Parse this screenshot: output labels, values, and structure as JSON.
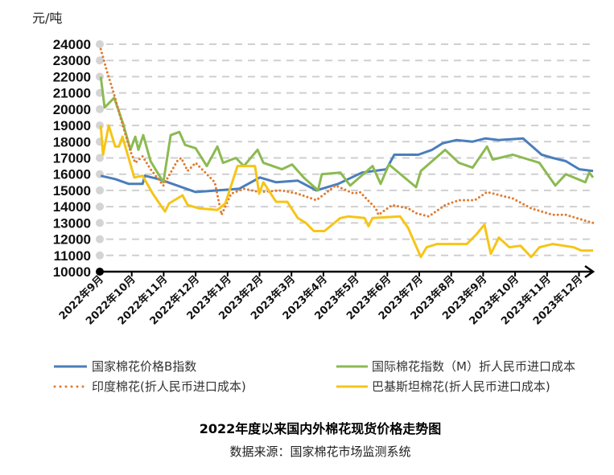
{
  "chart_data": {
    "type": "line",
    "title": "2022年度以来国内外棉花现货价格走势图",
    "source": "数据来源：国家棉花市场监测系统",
    "ylabel": "元/吨",
    "xlabel": "",
    "ylim": [
      10000,
      24000
    ],
    "yticks": [
      "10000",
      "11000",
      "12000",
      "13000",
      "14000",
      "15000",
      "16000",
      "17000",
      "18000",
      "19000",
      "20000",
      "21000",
      "22000",
      "23000",
      "24000"
    ],
    "x_unit": "months since 2022-09-01",
    "xticks": [
      "2022年9月",
      "2022年10月",
      "2022年11月",
      "2022年12月",
      "2023年1月",
      "2023年2月",
      "2023年3月",
      "2023年4月",
      "2023年5月",
      "2023年6月",
      "2023年7月",
      "2023年8月",
      "2023年9月",
      "2023年10月",
      "2023年11月",
      "2023年12月"
    ],
    "grid": true,
    "legend_position": "bottom",
    "series": [
      {
        "name": "国家棉花价格B指数",
        "color": "#4a7ebb",
        "style": "solid",
        "points": [
          [
            0.03,
            15900
          ],
          [
            0.48,
            15700
          ],
          [
            0.91,
            15400
          ],
          [
            1.34,
            15400
          ],
          [
            1.41,
            15900
          ],
          [
            1.84,
            15700
          ],
          [
            1.99,
            15600
          ],
          [
            3.0,
            14900
          ],
          [
            3.68,
            15000
          ],
          [
            4.36,
            15100
          ],
          [
            5.01,
            15800
          ],
          [
            5.52,
            15500
          ],
          [
            6.2,
            15600
          ],
          [
            6.78,
            15000
          ],
          [
            7.46,
            15400
          ],
          [
            8.21,
            16100
          ],
          [
            8.97,
            16300
          ],
          [
            9.22,
            17200
          ],
          [
            9.97,
            17200
          ],
          [
            10.4,
            17500
          ],
          [
            10.73,
            17900
          ],
          [
            11.16,
            18100
          ],
          [
            11.66,
            18000
          ],
          [
            12.07,
            18200
          ],
          [
            12.49,
            18100
          ],
          [
            13.25,
            18200
          ],
          [
            13.83,
            17200
          ],
          [
            14.18,
            17000
          ],
          [
            14.59,
            16800
          ],
          [
            15.01,
            16300
          ],
          [
            15.44,
            16200
          ]
        ]
      },
      {
        "name": "国际棉花指数（M）折人民币进口成本",
        "color": "#8cba52",
        "style": "solid",
        "points": [
          [
            0.03,
            22000
          ],
          [
            0.15,
            20100
          ],
          [
            0.45,
            20700
          ],
          [
            0.73,
            19100
          ],
          [
            0.96,
            17500
          ],
          [
            1.11,
            18300
          ],
          [
            1.21,
            17500
          ],
          [
            1.36,
            18400
          ],
          [
            1.59,
            16800
          ],
          [
            1.99,
            15500
          ],
          [
            2.22,
            18400
          ],
          [
            2.49,
            18600
          ],
          [
            2.67,
            17800
          ],
          [
            3.0,
            17600
          ],
          [
            3.35,
            16500
          ],
          [
            3.68,
            17700
          ],
          [
            3.86,
            16700
          ],
          [
            4.26,
            17000
          ],
          [
            4.51,
            16500
          ],
          [
            4.94,
            17500
          ],
          [
            5.12,
            16700
          ],
          [
            5.7,
            16300
          ],
          [
            6.02,
            16600
          ],
          [
            6.38,
            15800
          ],
          [
            6.83,
            15000
          ],
          [
            6.95,
            16000
          ],
          [
            7.53,
            16100
          ],
          [
            7.84,
            15300
          ],
          [
            8.54,
            16500
          ],
          [
            8.79,
            15400
          ],
          [
            9.05,
            16600
          ],
          [
            9.9,
            15200
          ],
          [
            10.05,
            16200
          ],
          [
            10.81,
            17500
          ],
          [
            11.24,
            16700
          ],
          [
            11.67,
            16400
          ],
          [
            12.12,
            17700
          ],
          [
            12.3,
            16900
          ],
          [
            12.93,
            17200
          ],
          [
            13.76,
            16700
          ],
          [
            14.26,
            15300
          ],
          [
            14.59,
            16000
          ],
          [
            15.2,
            15500
          ],
          [
            15.32,
            16100
          ],
          [
            15.44,
            15800
          ]
        ]
      },
      {
        "name": "印度棉花(折人民币进口成本)",
        "color": "#e07b30",
        "style": "dotted",
        "points": [
          [
            0.03,
            23700
          ],
          [
            0.23,
            22300
          ],
          [
            0.45,
            20900
          ],
          [
            0.66,
            19400
          ],
          [
            0.96,
            17400
          ],
          [
            1.11,
            16700
          ],
          [
            1.34,
            17100
          ],
          [
            1.59,
            16300
          ],
          [
            1.99,
            15300
          ],
          [
            2.42,
            16800
          ],
          [
            2.55,
            17000
          ],
          [
            2.75,
            16200
          ],
          [
            3.0,
            16700
          ],
          [
            3.35,
            16000
          ],
          [
            3.6,
            15500
          ],
          [
            3.81,
            13500
          ],
          [
            4.11,
            14800
          ],
          [
            4.51,
            15100
          ],
          [
            5.01,
            14900
          ],
          [
            5.7,
            15000
          ],
          [
            6.2,
            14800
          ],
          [
            6.78,
            14400
          ],
          [
            7.38,
            15300
          ],
          [
            7.96,
            14800
          ],
          [
            8.14,
            14900
          ],
          [
            8.64,
            13900
          ],
          [
            8.72,
            13500
          ],
          [
            9.15,
            14100
          ],
          [
            9.65,
            13900
          ],
          [
            9.9,
            13600
          ],
          [
            10.3,
            13400
          ],
          [
            10.81,
            14100
          ],
          [
            11.24,
            14400
          ],
          [
            11.74,
            14400
          ],
          [
            12.12,
            14900
          ],
          [
            12.93,
            14500
          ],
          [
            13.5,
            13900
          ],
          [
            14.18,
            13500
          ],
          [
            14.59,
            13500
          ],
          [
            15.44,
            13000
          ]
        ]
      },
      {
        "name": "巴基斯坦棉花(折人民币进口成本)",
        "color": "#f5c518",
        "style": "solid",
        "points": [
          [
            0.03,
            19000
          ],
          [
            0.1,
            17200
          ],
          [
            0.28,
            19000
          ],
          [
            0.48,
            17700
          ],
          [
            0.6,
            17700
          ],
          [
            0.71,
            18300
          ],
          [
            1.08,
            15800
          ],
          [
            1.34,
            15900
          ],
          [
            1.66,
            14800
          ],
          [
            2.04,
            13700
          ],
          [
            2.17,
            14200
          ],
          [
            2.59,
            14700
          ],
          [
            2.75,
            14100
          ],
          [
            3.1,
            13900
          ],
          [
            3.68,
            13800
          ],
          [
            3.93,
            14200
          ],
          [
            4.31,
            16500
          ],
          [
            4.86,
            16500
          ],
          [
            4.99,
            14800
          ],
          [
            5.12,
            15500
          ],
          [
            5.52,
            14300
          ],
          [
            5.87,
            14300
          ],
          [
            6.2,
            13300
          ],
          [
            6.45,
            13000
          ],
          [
            6.7,
            12500
          ],
          [
            7.03,
            12500
          ],
          [
            7.53,
            13300
          ],
          [
            7.78,
            13400
          ],
          [
            8.29,
            13300
          ],
          [
            8.41,
            12800
          ],
          [
            8.54,
            13300
          ],
          [
            9.4,
            13400
          ],
          [
            9.65,
            12700
          ],
          [
            10.05,
            10900
          ],
          [
            10.23,
            11500
          ],
          [
            10.56,
            11700
          ],
          [
            11.49,
            11700
          ],
          [
            11.79,
            12300
          ],
          [
            12.04,
            12900
          ],
          [
            12.24,
            11100
          ],
          [
            12.49,
            12100
          ],
          [
            12.82,
            11500
          ],
          [
            13.17,
            11600
          ],
          [
            13.5,
            10900
          ],
          [
            13.76,
            11500
          ],
          [
            14.18,
            11700
          ],
          [
            14.84,
            11500
          ],
          [
            15.07,
            11300
          ],
          [
            15.44,
            11300
          ]
        ]
      }
    ]
  }
}
